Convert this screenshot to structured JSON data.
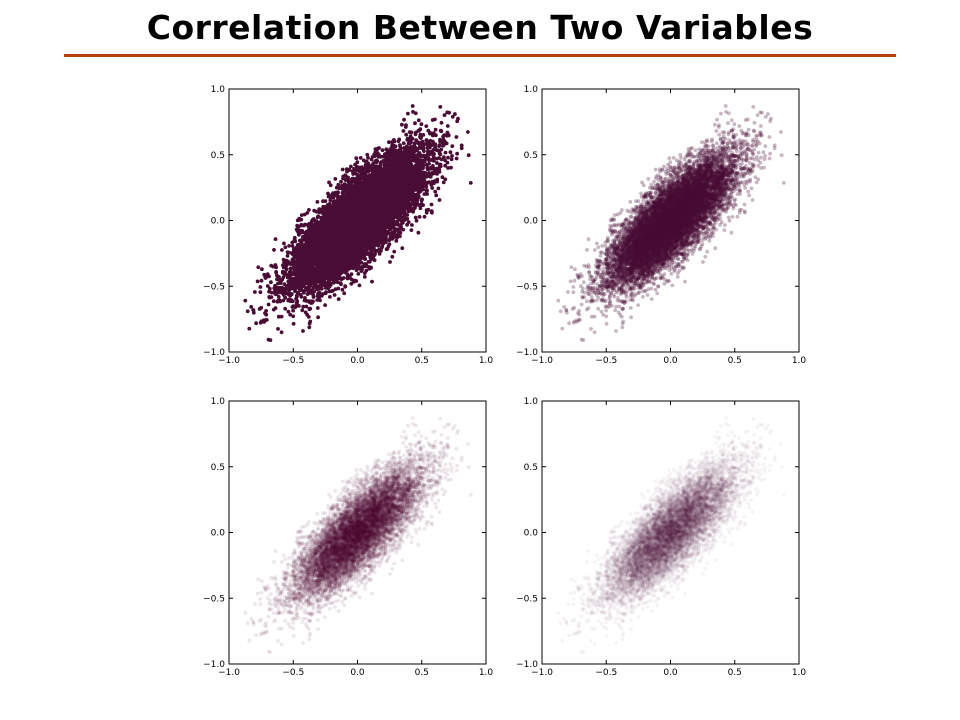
{
  "slide": {
    "title": "Correlation Between Two Variables",
    "title_color": "#000000",
    "rule_color": "#B8410E"
  },
  "chart_data": [
    {
      "type": "scatter",
      "title": "",
      "xlabel": "",
      "ylabel": "",
      "xlim": [
        -1.0,
        1.0
      ],
      "ylim": [
        -1.0,
        1.0
      ],
      "xticks": [
        "−1.0",
        "−0.5",
        "0.0",
        "0.5",
        "1.0"
      ],
      "yticks": [
        "−1.0",
        "−0.5",
        "0.0",
        "0.5",
        "1.0"
      ],
      "grid": false,
      "color": "#4A0D35",
      "alpha": 1.0,
      "distribution": {
        "x_mean": 0.0,
        "y_mean": 0.0,
        "x_std": 0.25,
        "y_std": 0.25,
        "correlation": 0.8,
        "n_points": 10000
      }
    },
    {
      "type": "scatter",
      "title": "",
      "xlabel": "",
      "ylabel": "",
      "xlim": [
        -1.0,
        1.0
      ],
      "ylim": [
        -1.0,
        1.0
      ],
      "xticks": [
        "−1.0",
        "−0.5",
        "0.0",
        "0.5",
        "1.0"
      ],
      "yticks": [
        "−1.0",
        "−0.5",
        "0.0",
        "0.5",
        "1.0"
      ],
      "grid": false,
      "color": "#4A0D35",
      "alpha": 0.3,
      "distribution": {
        "x_mean": 0.0,
        "y_mean": 0.0,
        "x_std": 0.25,
        "y_std": 0.25,
        "correlation": 0.8,
        "n_points": 10000
      }
    },
    {
      "type": "scatter",
      "title": "",
      "xlabel": "",
      "ylabel": "",
      "xlim": [
        -1.0,
        1.0
      ],
      "ylim": [
        -1.0,
        1.0
      ],
      "xticks": [
        "−1.0",
        "−0.5",
        "0.0",
        "0.5",
        "1.0"
      ],
      "yticks": [
        "−1.0",
        "−0.5",
        "0.0",
        "0.5",
        "1.0"
      ],
      "grid": false,
      "color": "#4A0D35",
      "alpha": 0.1,
      "distribution": {
        "x_mean": 0.0,
        "y_mean": 0.0,
        "x_std": 0.25,
        "y_std": 0.25,
        "correlation": 0.8,
        "n_points": 10000
      }
    },
    {
      "type": "scatter",
      "title": "",
      "xlabel": "",
      "ylabel": "",
      "xlim": [
        -1.0,
        1.0
      ],
      "ylim": [
        -1.0,
        1.0
      ],
      "xticks": [
        "−1.0",
        "−0.5",
        "0.0",
        "0.5",
        "1.0"
      ],
      "yticks": [
        "−1.0",
        "−0.5",
        "0.0",
        "0.5",
        "1.0"
      ],
      "grid": false,
      "color": "#4A0D35",
      "alpha": 0.05,
      "distribution": {
        "x_mean": 0.0,
        "y_mean": 0.0,
        "x_std": 0.25,
        "y_std": 0.25,
        "correlation": 0.8,
        "n_points": 10000
      }
    }
  ]
}
